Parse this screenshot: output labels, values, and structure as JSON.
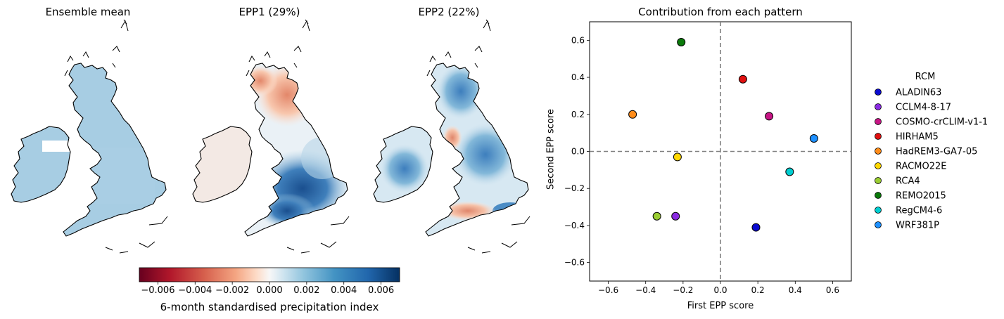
{
  "colors": {
    "scale_neg_end": "#67001f",
    "scale_mid": "#f7f7f7",
    "scale_pos_end": "#053061",
    "dashed_line": "#808080"
  },
  "maps": {
    "panels": [
      {
        "title": "Ensemble mean"
      },
      {
        "title": "EPP1 (29%)"
      },
      {
        "title": "EPP2 (22%)"
      }
    ],
    "colorbar": {
      "label": "6-month standardised precipitation index",
      "ticks": [
        "−0.006",
        "−0.004",
        "−0.002",
        "0.000",
        "0.002",
        "0.004",
        "0.006"
      ],
      "range": [
        -0.007,
        0.007
      ]
    }
  },
  "chart_data": {
    "type": "scatter",
    "title": "Contribution from each pattern",
    "xlabel": "First EPP score",
    "ylabel": "Second EPP score",
    "xlim": [
      -0.7,
      0.7
    ],
    "ylim": [
      -0.7,
      0.7
    ],
    "xticks": [
      "−0.6",
      "−0.4",
      "−0.2",
      "0.0",
      "0.2",
      "0.4",
      "0.6"
    ],
    "yticks": [
      "−0.6",
      "−0.4",
      "−0.2",
      "0.0",
      "0.2",
      "0.4",
      "0.6"
    ],
    "reference_lines": {
      "x": 0,
      "y": 0,
      "style": "dashed"
    },
    "legend": {
      "title": "RCM",
      "placement": "right, outside"
    },
    "series": [
      {
        "name": "ALADIN63",
        "x": 0.19,
        "y": -0.41,
        "color": "#0a0ad0"
      },
      {
        "name": "CCLM4-8-17",
        "x": -0.24,
        "y": -0.35,
        "color": "#8a2be2"
      },
      {
        "name": "COSMO-crCLIM-v1-1",
        "x": 0.26,
        "y": 0.19,
        "color": "#c71585"
      },
      {
        "name": "HIRHAM5",
        "x": 0.12,
        "y": 0.39,
        "color": "#e01010"
      },
      {
        "name": "HadREM3-GA7-05",
        "x": -0.47,
        "y": 0.2,
        "color": "#ff8c1a"
      },
      {
        "name": "RACMO22E",
        "x": -0.23,
        "y": -0.03,
        "color": "#ffd700"
      },
      {
        "name": "RCA4",
        "x": -0.34,
        "y": -0.35,
        "color": "#9acd32"
      },
      {
        "name": "REMO2015",
        "x": -0.21,
        "y": 0.59,
        "color": "#0a7a0a"
      },
      {
        "name": "RegCM4-6",
        "x": 0.37,
        "y": -0.11,
        "color": "#00ced1"
      },
      {
        "name": "WRF381P",
        "x": 0.5,
        "y": 0.07,
        "color": "#1e90ff"
      }
    ]
  }
}
